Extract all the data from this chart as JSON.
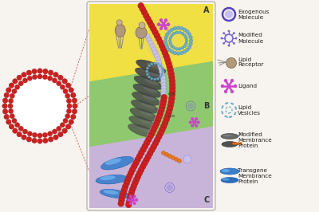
{
  "bg_color": "#f7f3ee",
  "legend_items": [
    {
      "label": "Exogenous\nMolecule",
      "type": "exogenous"
    },
    {
      "label": "Modified\nMolecule",
      "type": "modified"
    },
    {
      "label": "Lipid\nReceptor",
      "type": "receptor"
    },
    {
      "label": "Ligand",
      "type": "ligand"
    },
    {
      "label": "Lipid\nVesicles",
      "type": "vesicle"
    },
    {
      "label": "Modified\nMembrance\nProtein",
      "type": "mod_protein"
    },
    {
      "label": "Transgene\nMembrance\nProtein",
      "type": "trans_protein"
    }
  ],
  "section_colors_A": "#f0e044",
  "section_colors_B": "#90c870",
  "section_colors_C": "#c8b4d8",
  "bead_color_red": "#cc2020",
  "bead_color_lavender": "#c8c0ea",
  "lipid_vesicle_color": "#70b0c8",
  "ligand_color": "#cc44cc",
  "receptor_color": "#a08868",
  "orange_color": "#e87820",
  "blue_protein_color": "#3a7ecc",
  "dark_protein_color": "#484848"
}
